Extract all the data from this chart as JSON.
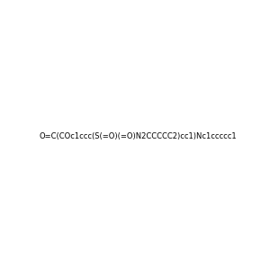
{
  "smiles": "O=C(COc1ccc(S(=O)(=O)N2CCCCC2)cc1)Nc1ccccc1",
  "image_size": 300,
  "background_color": "#e8e8e8",
  "atom_colors": {
    "N": "#0000ff",
    "O": "#ff0000",
    "S": "#cccc00"
  }
}
